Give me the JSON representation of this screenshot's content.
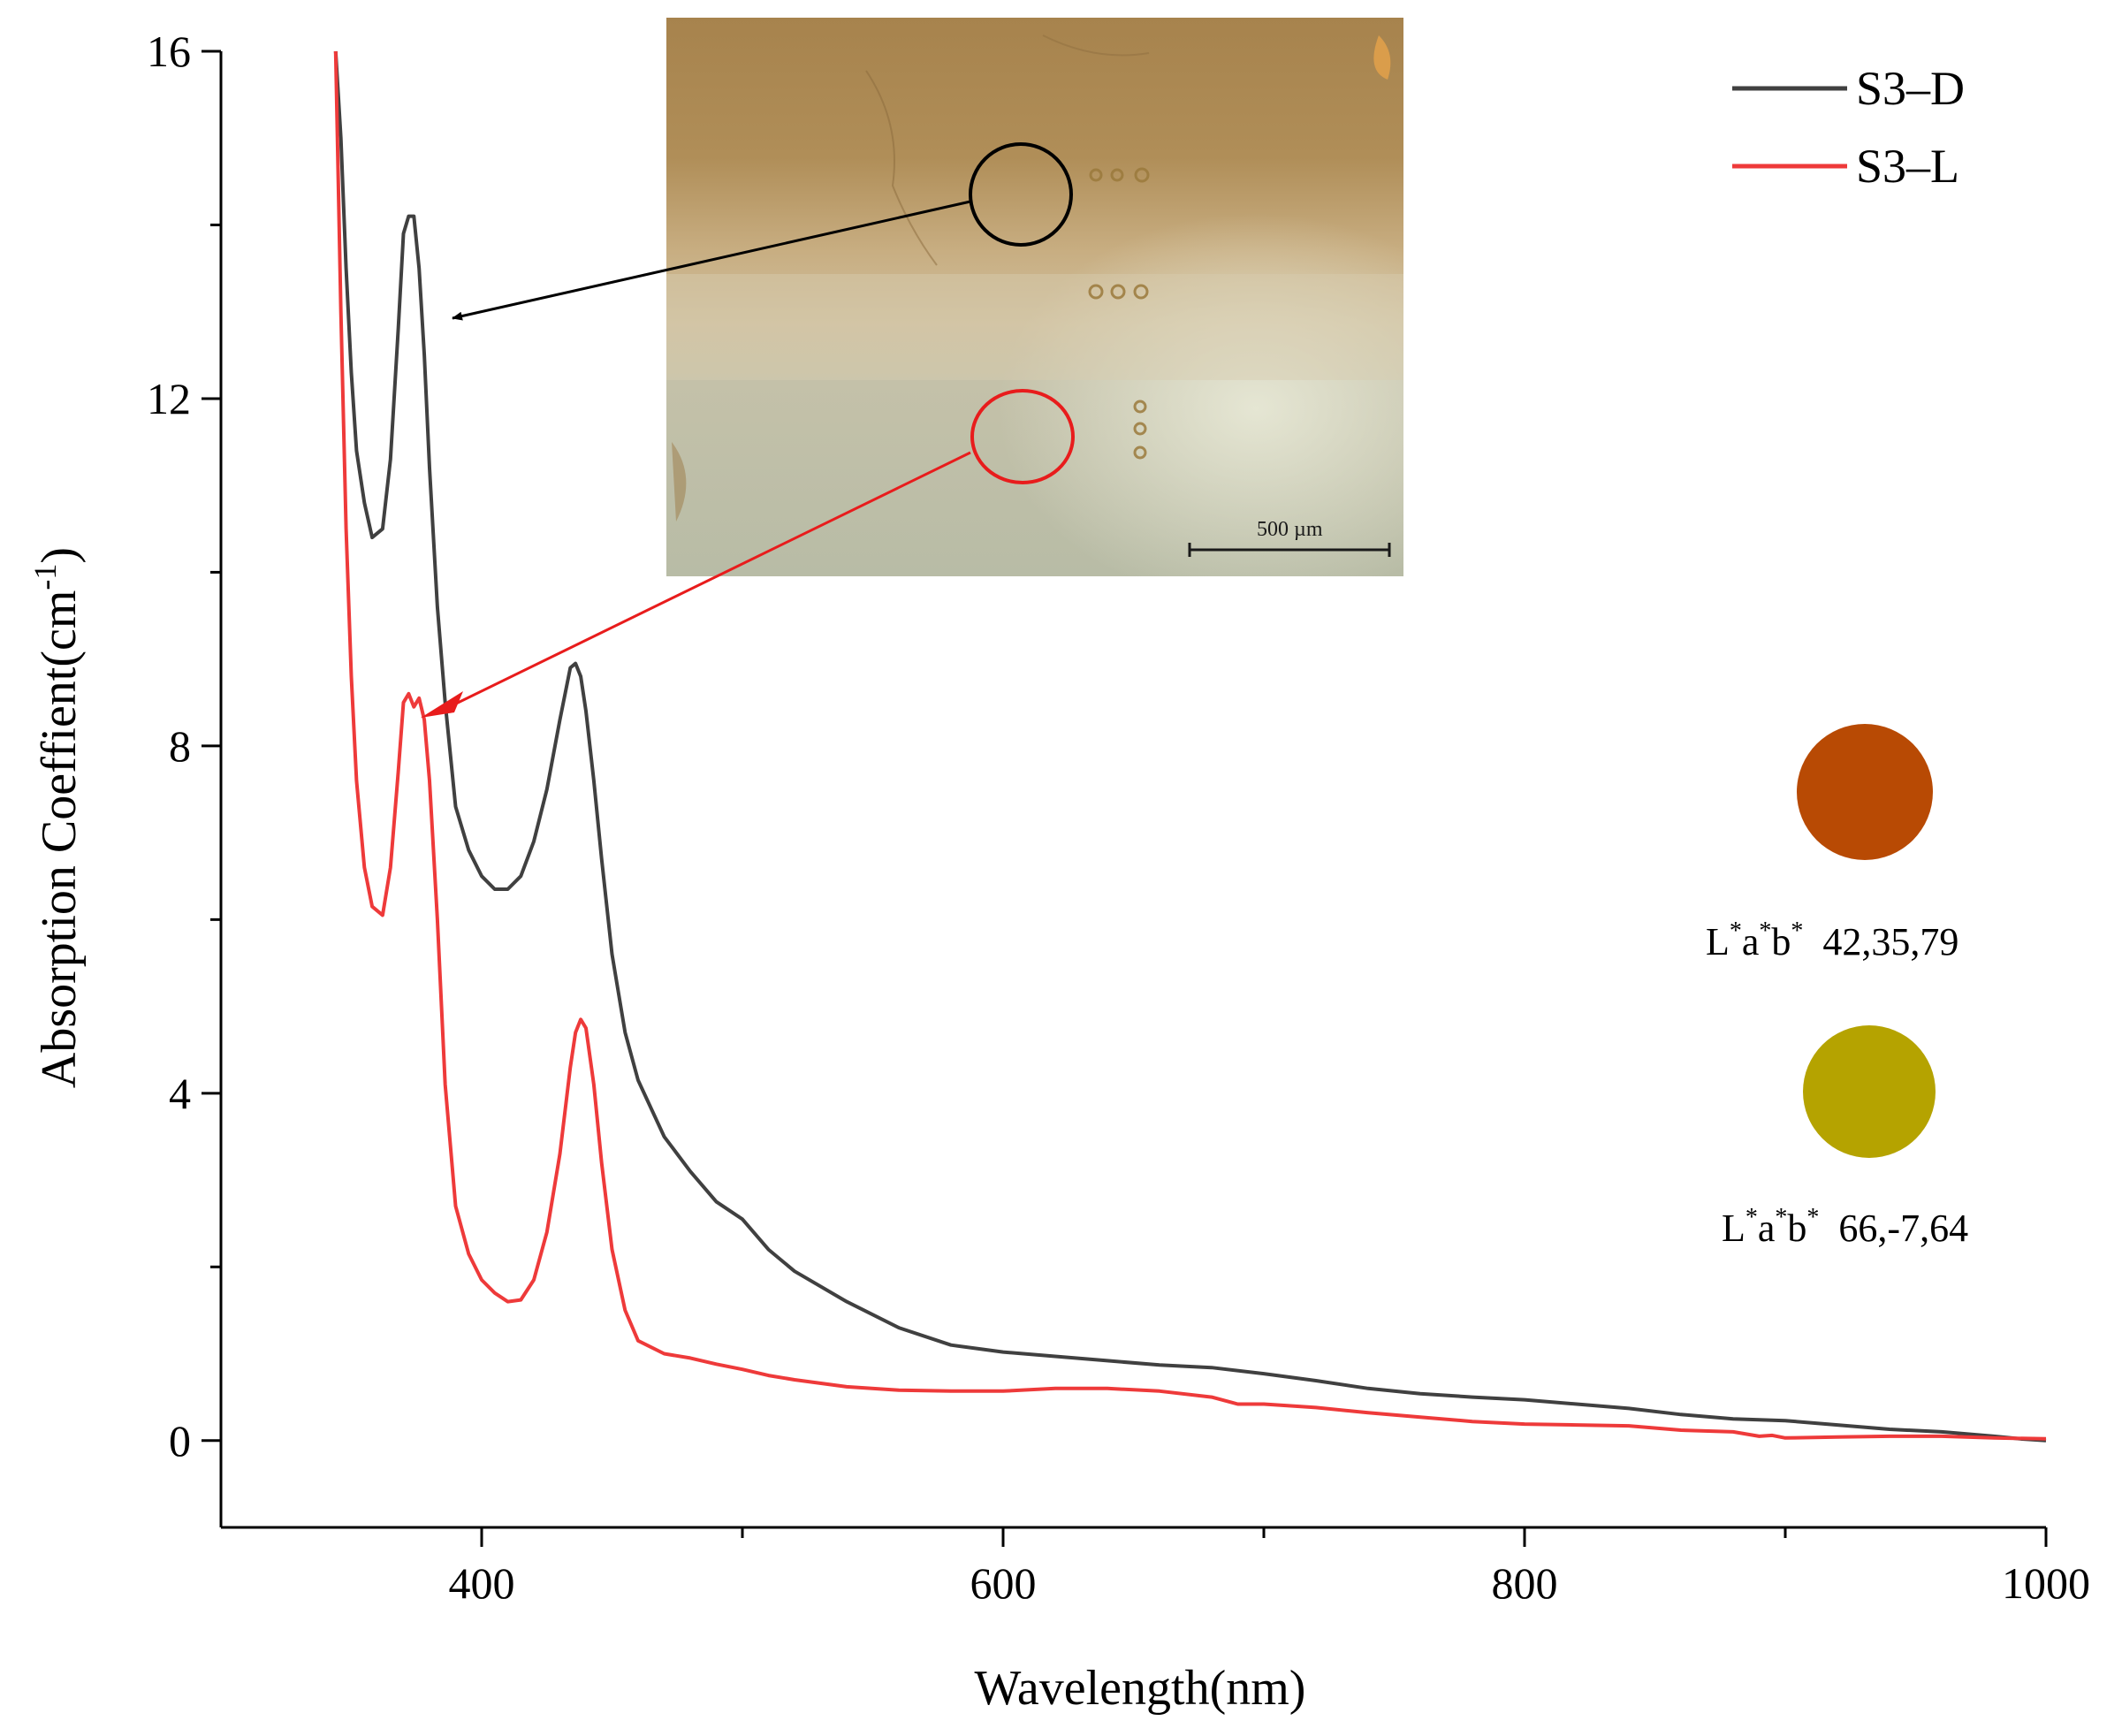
{
  "chart_data": {
    "type": "line",
    "xlabel": "Wavelength(nm)",
    "ylabel_main": "Absorption Coeffient(cm",
    "ylabel_sup": "-1",
    "ylabel_close": ")",
    "xlim": [
      300,
      1000
    ],
    "ylim": [
      -1,
      16
    ],
    "x_ticks": [
      400,
      600,
      800,
      1000
    ],
    "x_minor_ticks": [
      500,
      700,
      900
    ],
    "y_ticks": [
      0,
      4,
      8,
      12,
      16
    ],
    "y_minor_ticks": [
      2,
      6,
      10,
      14
    ],
    "x_tick_labels": [
      "400",
      "600",
      "800",
      "1000"
    ],
    "y_tick_labels": [
      "0",
      "4",
      "8",
      "12",
      "16"
    ],
    "legend_position": "top-right",
    "series": [
      {
        "name": "S3–D",
        "color": "#404040",
        "x": [
          344,
          346,
          348,
          350,
          352,
          355,
          358,
          362,
          365,
          368,
          370,
          372,
          374,
          376,
          378,
          380,
          383,
          386,
          390,
          395,
          400,
          405,
          410,
          415,
          420,
          425,
          430,
          434,
          436,
          438,
          440,
          443,
          446,
          450,
          455,
          460,
          470,
          480,
          490,
          500,
          510,
          520,
          540,
          560,
          580,
          600,
          620,
          640,
          660,
          680,
          700,
          720,
          740,
          760,
          780,
          800,
          820,
          840,
          860,
          880,
          900,
          920,
          940,
          960,
          980,
          990,
          1000
        ],
        "values": [
          16.0,
          15.0,
          13.5,
          12.3,
          11.4,
          10.8,
          10.4,
          10.5,
          11.3,
          12.8,
          13.9,
          14.1,
          14.1,
          13.5,
          12.5,
          11.2,
          9.6,
          8.5,
          7.3,
          6.8,
          6.5,
          6.35,
          6.35,
          6.5,
          6.9,
          7.5,
          8.3,
          8.9,
          8.95,
          8.8,
          8.4,
          7.6,
          6.7,
          5.6,
          4.7,
          4.15,
          3.5,
          3.1,
          2.75,
          2.55,
          2.2,
          1.95,
          1.6,
          1.3,
          1.1,
          1.02,
          0.97,
          0.92,
          0.87,
          0.84,
          0.77,
          0.69,
          0.6,
          0.54,
          0.5,
          0.47,
          0.42,
          0.37,
          0.3,
          0.25,
          0.23,
          0.18,
          0.13,
          0.1,
          0.05,
          0.02,
          0.0
        ]
      },
      {
        "name": "S3–L",
        "color": "#ee3a3a",
        "x": [
          344,
          346,
          348,
          350,
          352,
          355,
          358,
          362,
          365,
          368,
          370,
          372,
          374,
          376,
          378,
          380,
          383,
          386,
          390,
          395,
          400,
          405,
          410,
          415,
          420,
          425,
          430,
          434,
          436,
          438,
          440,
          443,
          446,
          450,
          455,
          460,
          470,
          480,
          490,
          500,
          510,
          520,
          540,
          560,
          580,
          600,
          620,
          640,
          660,
          680,
          690,
          700,
          720,
          740,
          760,
          780,
          800,
          820,
          840,
          860,
          880,
          890,
          895,
          900,
          920,
          940,
          960,
          980,
          1000
        ],
        "values": [
          16.0,
          13.0,
          10.5,
          8.8,
          7.6,
          6.6,
          6.15,
          6.05,
          6.6,
          7.7,
          8.5,
          8.6,
          8.45,
          8.55,
          8.3,
          7.6,
          6.0,
          4.1,
          2.7,
          2.15,
          1.85,
          1.7,
          1.6,
          1.62,
          1.85,
          2.4,
          3.3,
          4.3,
          4.7,
          4.85,
          4.75,
          4.1,
          3.2,
          2.2,
          1.5,
          1.15,
          1.0,
          0.95,
          0.88,
          0.82,
          0.75,
          0.7,
          0.62,
          0.58,
          0.57,
          0.57,
          0.6,
          0.6,
          0.57,
          0.5,
          0.42,
          0.42,
          0.38,
          0.32,
          0.27,
          0.22,
          0.19,
          0.18,
          0.17,
          0.12,
          0.1,
          0.05,
          0.06,
          0.03,
          0.04,
          0.05,
          0.05,
          0.03,
          0.02
        ]
      }
    ],
    "color_swatches": [
      {
        "color": "#b84a04",
        "prefix": "L",
        "sup1": "*",
        "mid1": "a",
        "sup2": "*",
        "mid2": "b",
        "sup3": "*",
        "values": "42,35,79"
      },
      {
        "color": "#b5a300",
        "prefix": "L",
        "sup1": "*",
        "mid1": "a",
        "sup2": "*",
        "mid2": "b",
        "sup3": "*",
        "values": "66,-7,64"
      }
    ],
    "inset": {
      "description_scale_label": "500 µm",
      "marker_dark_color": "#000000",
      "marker_light_color": "#e81c1c"
    }
  }
}
